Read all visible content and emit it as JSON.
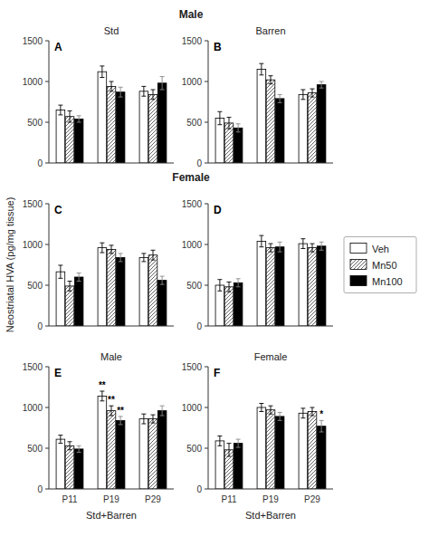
{
  "chart_data": [
    {
      "type": "bar",
      "title": "Std",
      "subtitle": "Male",
      "categories": [
        "P11",
        "P19",
        "P29"
      ],
      "series": [
        {
          "name": "Veh",
          "color": "#ffffff",
          "values": [
            650,
            1120,
            880
          ],
          "errors": [
            60,
            70,
            60
          ]
        },
        {
          "name": "Mn50",
          "color": "#ffffff",
          "values": [
            570,
            940,
            840
          ],
          "errors": [
            70,
            60,
            60
          ]
        },
        {
          "name": "Mn100",
          "color": "#000000",
          "values": [
            540,
            870,
            980
          ],
          "errors": [
            40,
            60,
            80
          ]
        }
      ],
      "ylim": [
        0,
        1500
      ],
      "yticks": [
        0,
        500,
        1000,
        1500
      ],
      "grid": false,
      "tick_labels": "y",
      "annotations": [
        {
          "text": "A"
        }
      ]
    },
    {
      "type": "bar",
      "title": "Barren",
      "categories": [
        "P11",
        "P19",
        "P29"
      ],
      "series": [
        {
          "name": "Veh",
          "color": "#ffffff",
          "values": [
            550,
            1150,
            840
          ],
          "errors": [
            80,
            70,
            60
          ]
        },
        {
          "name": "Mn50",
          "color": "#ffffff",
          "values": [
            490,
            1020,
            860
          ],
          "errors": [
            70,
            50,
            50
          ]
        },
        {
          "name": "Mn100",
          "color": "#000000",
          "values": [
            430,
            790,
            960
          ],
          "errors": [
            50,
            50,
            40
          ]
        }
      ],
      "ylim": [
        0,
        1500
      ],
      "yticks": [
        0,
        500,
        1000,
        1500
      ],
      "grid": false,
      "tick_labels": "y",
      "annotations": [
        {
          "text": "B"
        }
      ]
    },
    {
      "type": "bar",
      "subtitle": "Female",
      "ylabel": "Neostriatal HVA (pg/mg tissue)",
      "categories": [
        "P11",
        "P19",
        "P29"
      ],
      "series": [
        {
          "name": "Veh",
          "color": "#ffffff",
          "values": [
            665,
            960,
            840
          ],
          "errors": [
            80,
            60,
            50
          ]
        },
        {
          "name": "Mn50",
          "color": "#ffffff",
          "values": [
            490,
            940,
            870
          ],
          "errors": [
            60,
            50,
            60
          ]
        },
        {
          "name": "Mn100",
          "color": "#000000",
          "values": [
            600,
            840,
            560
          ],
          "errors": [
            50,
            50,
            50
          ]
        }
      ],
      "ylim": [
        0,
        1500
      ],
      "yticks": [
        0,
        500,
        1000,
        1500
      ],
      "grid": false,
      "tick_labels": "y",
      "annotations": [
        {
          "text": "C"
        }
      ]
    },
    {
      "type": "bar",
      "legend": "right",
      "categories": [
        "P11",
        "P19",
        "P29"
      ],
      "series": [
        {
          "name": "Veh",
          "color": "#ffffff",
          "values": [
            500,
            1040,
            1010
          ],
          "errors": [
            70,
            70,
            60
          ]
        },
        {
          "name": "Mn50",
          "color": "#ffffff",
          "values": [
            480,
            960,
            960
          ],
          "errors": [
            60,
            50,
            50
          ]
        },
        {
          "name": "Mn100",
          "color": "#000000",
          "values": [
            530,
            970,
            980
          ],
          "errors": [
            50,
            60,
            50
          ]
        }
      ],
      "ylim": [
        0,
        1500
      ],
      "yticks": [
        0,
        500,
        1000,
        1500
      ],
      "grid": false,
      "tick_labels": "y",
      "annotations": [
        {
          "text": "D"
        }
      ]
    },
    {
      "type": "bar",
      "title": "Male",
      "xlabel": "Std+Barren",
      "categories": [
        "P11",
        "P19",
        "P29"
      ],
      "series": [
        {
          "name": "Veh",
          "color": "#ffffff",
          "values": [
            610,
            1140,
            860
          ],
          "errors": [
            50,
            60,
            60
          ]
        },
        {
          "name": "Mn50",
          "color": "#ffffff",
          "values": [
            530,
            960,
            860
          ],
          "errors": [
            50,
            60,
            50
          ]
        },
        {
          "name": "Mn100",
          "color": "#000000",
          "values": [
            490,
            840,
            960
          ],
          "errors": [
            40,
            50,
            60
          ]
        }
      ],
      "ylim": [
        0,
        1500
      ],
      "yticks": [
        0,
        500,
        1000,
        1500
      ],
      "grid": false,
      "annotations": [
        {
          "text": "E"
        },
        {
          "text": "**",
          "category": "P19",
          "series": "Veh"
        },
        {
          "text": "**",
          "category": "P19",
          "series": "Mn50"
        },
        {
          "text": "**",
          "category": "P19",
          "series": "Mn100"
        }
      ]
    },
    {
      "type": "bar",
      "title": "Female",
      "xlabel": "Std+Barren",
      "categories": [
        "P11",
        "P19",
        "P29"
      ],
      "series": [
        {
          "name": "Veh",
          "color": "#ffffff",
          "values": [
            590,
            1000,
            930
          ],
          "errors": [
            60,
            50,
            60
          ]
        },
        {
          "name": "Mn50",
          "color": "#ffffff",
          "values": [
            480,
            970,
            950
          ],
          "errors": [
            80,
            50,
            50
          ]
        },
        {
          "name": "Mn100",
          "color": "#000000",
          "values": [
            560,
            890,
            770
          ],
          "errors": [
            50,
            50,
            70
          ]
        }
      ],
      "ylim": [
        0,
        1500
      ],
      "yticks": [
        0,
        500,
        1000,
        1500
      ],
      "grid": false,
      "annotations": [
        {
          "text": "F"
        },
        {
          "text": "*",
          "category": "P29",
          "series": "Mn100"
        }
      ]
    }
  ]
}
